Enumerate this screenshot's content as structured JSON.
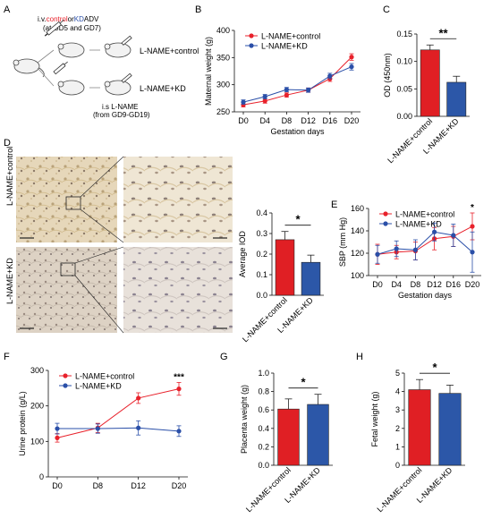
{
  "panel_letters": [
    "A",
    "B",
    "C",
    "D",
    "E",
    "F",
    "G",
    "H"
  ],
  "colors": {
    "control": "#e8212b",
    "kd": "#2a4fa8",
    "bar_control": "#e01f24",
    "bar_kd": "#2c57a8"
  },
  "panel_a": {
    "injection_prefix": "i.v.",
    "injection_control": "control",
    "injection_sep": "or",
    "injection_kd": "KD",
    "injection_suffix": "ADV",
    "injection_days": "(at GD5 and GD7)",
    "label_control": "L-NAME+control",
    "label_kd": "L-NAME+KD",
    "lname_line1": "i.s L-NAME",
    "lname_line2": "(from GD9-GD19)"
  },
  "panel_d": {
    "row_label_control": "L-NAME+control",
    "row_label_kd": "L-NAME+KD"
  },
  "chart_data": [
    {
      "id": "B",
      "type": "line",
      "title": "",
      "xlabel": "Gestation days",
      "ylabel": "Maternal weight (g)",
      "categories": [
        "D0",
        "D4",
        "D8",
        "D12",
        "D16",
        "D20"
      ],
      "ylim": [
        250,
        400
      ],
      "yticks": [
        250,
        300,
        350,
        400
      ],
      "legend": "top-left",
      "series": [
        {
          "name": "L-NAME+control",
          "values": [
            263,
            270,
            281,
            290,
            311,
            351
          ],
          "err": [
            4,
            4,
            4,
            4,
            5,
            6
          ]
        },
        {
          "name": "L-NAME+KD",
          "values": [
            268,
            278,
            291,
            290,
            316,
            333
          ],
          "err": [
            4,
            4,
            4,
            4,
            5,
            6
          ]
        }
      ]
    },
    {
      "id": "C",
      "type": "bar",
      "ylabel": "OD (450nm)",
      "categories": [
        "L-NAME+control",
        "L-NAME+KD"
      ],
      "values": [
        0.121,
        0.062
      ],
      "err": [
        0.009,
        0.011
      ],
      "ylim": [
        0,
        0.15
      ],
      "yticks": [
        "0.00",
        "0.05",
        "0.10",
        "0.15"
      ],
      "significance": "**"
    },
    {
      "id": "D",
      "type": "bar",
      "ylabel": "Average IOD",
      "categories": [
        "L-NAME+control",
        "L-NAME+KD"
      ],
      "values": [
        0.27,
        0.16
      ],
      "err": [
        0.04,
        0.035
      ],
      "ylim": [
        0,
        0.4
      ],
      "yticks": [
        "0.0",
        "0.1",
        "0.2",
        "0.3",
        "0.4"
      ],
      "significance": "*"
    },
    {
      "id": "E",
      "type": "line",
      "xlabel": "Gestation days",
      "ylabel": "SBP (mm Hg)",
      "categories": [
        "D0",
        "D4",
        "D8",
        "D12",
        "D16",
        "D20"
      ],
      "ylim": [
        100,
        160
      ],
      "yticks": [
        100,
        120,
        140,
        160
      ],
      "legend": "top-left",
      "significance_at": "D20",
      "significance": "*",
      "series": [
        {
          "name": "L-NAME+control",
          "values": [
            119,
            121,
            122,
            133,
            135,
            144
          ],
          "err": [
            9,
            6,
            8,
            10,
            9,
            12
          ]
        },
        {
          "name": "L-NAME+KD",
          "values": [
            119,
            124,
            123,
            139,
            136,
            121
          ],
          "err": [
            8,
            7,
            9,
            8,
            10,
            18
          ]
        }
      ]
    },
    {
      "id": "F",
      "type": "line",
      "ylabel": "Urine protein (g/L)",
      "categories": [
        "D0",
        "D8",
        "D12",
        "D20"
      ],
      "ylim": [
        0,
        300
      ],
      "yticks": [
        0,
        100,
        200,
        300
      ],
      "legend": "top-left",
      "significance_at": "D20",
      "significance": "***",
      "series": [
        {
          "name": "L-NAME+control",
          "values": [
            110,
            138,
            222,
            248
          ],
          "err": [
            12,
            13,
            15,
            18
          ]
        },
        {
          "name": "L-NAME+KD",
          "values": [
            136,
            136,
            138,
            129
          ],
          "err": [
            15,
            13,
            20,
            15
          ]
        }
      ]
    },
    {
      "id": "G",
      "type": "bar",
      "ylabel": "Placenta weight (g)",
      "categories": [
        "L-NAME+control",
        "L-NAME+KD"
      ],
      "values": [
        0.61,
        0.66
      ],
      "err": [
        0.11,
        0.11
      ],
      "ylim": [
        0,
        1.0
      ],
      "yticks": [
        "0.0",
        "0.2",
        "0.4",
        "0.6",
        "0.8",
        "1.0"
      ],
      "significance": "*"
    },
    {
      "id": "H",
      "type": "bar",
      "ylabel": "Fetal weight (g)",
      "categories": [
        "L-NAME+control",
        "L-NAME+KD"
      ],
      "values": [
        4.1,
        3.9
      ],
      "err": [
        0.55,
        0.45
      ],
      "ylim": [
        0,
        5
      ],
      "yticks": [
        "0",
        "1",
        "2",
        "3",
        "4",
        "5"
      ],
      "significance": "*"
    }
  ]
}
